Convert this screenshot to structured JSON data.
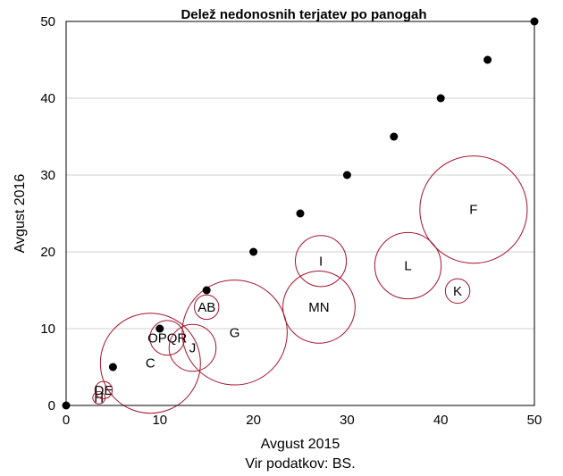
{
  "chart_data": {
    "type": "scatter",
    "title": "Delež nedonosnih terjatev po panogah",
    "xlabel": "Avgust 2015",
    "ylabel": "Avgust 2016",
    "source": "Vir podatkov: BS.",
    "xlim": [
      0,
      50
    ],
    "ylim": [
      0,
      50
    ],
    "xticks": [
      "0",
      "10",
      "20",
      "30",
      "40",
      "50"
    ],
    "yticks": [
      "0",
      "10",
      "20",
      "30",
      "40",
      "50"
    ],
    "grid": "horizontal",
    "colors": {
      "diagonal_points": "#000000",
      "bubbles": "#a3142d",
      "grid": "#d0d0d0"
    },
    "diagonal_points": [
      {
        "x": 0,
        "y": 0
      },
      {
        "x": 5,
        "y": 5
      },
      {
        "x": 10,
        "y": 10
      },
      {
        "x": 15,
        "y": 15
      },
      {
        "x": 20,
        "y": 20
      },
      {
        "x": 25,
        "y": 25
      },
      {
        "x": 30,
        "y": 30
      },
      {
        "x": 35,
        "y": 35
      },
      {
        "x": 40,
        "y": 40
      },
      {
        "x": 45,
        "y": 45
      },
      {
        "x": 50,
        "y": 50
      }
    ],
    "bubbles": [
      {
        "label": "H",
        "x": 3.5,
        "y": 1.0,
        "size": 1.5
      },
      {
        "label": "DE",
        "x": 4.0,
        "y": 2.0,
        "size": 3
      },
      {
        "label": "C",
        "x": 9.0,
        "y": 5.5,
        "size": 100
      },
      {
        "label": "OPQR",
        "x": 10.8,
        "y": 8.8,
        "size": 12
      },
      {
        "label": "J",
        "x": 13.5,
        "y": 7.5,
        "size": 22
      },
      {
        "label": "AB",
        "x": 15.0,
        "y": 12.8,
        "size": 6
      },
      {
        "label": "G",
        "x": 18.0,
        "y": 9.5,
        "size": 110
      },
      {
        "label": "I",
        "x": 27.2,
        "y": 18.8,
        "size": 26
      },
      {
        "label": "MN",
        "x": 27.0,
        "y": 12.8,
        "size": 52
      },
      {
        "label": "L",
        "x": 36.5,
        "y": 18.2,
        "size": 44
      },
      {
        "label": "K",
        "x": 41.8,
        "y": 14.9,
        "size": 6
      },
      {
        "label": "F",
        "x": 43.5,
        "y": 25.5,
        "size": 115
      }
    ]
  }
}
